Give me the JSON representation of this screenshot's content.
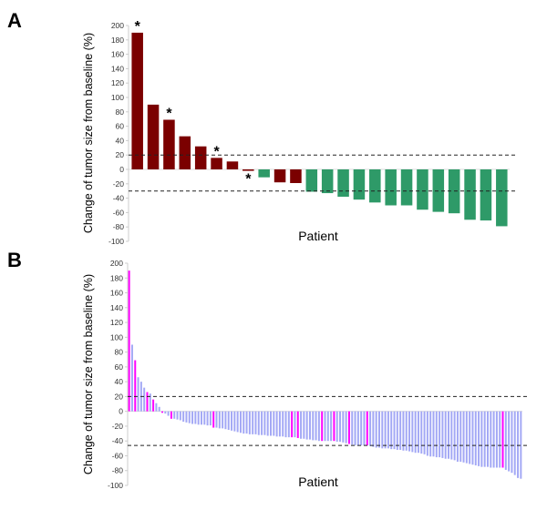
{
  "chart_data": [
    {
      "panel_label": "A",
      "type": "bar",
      "ylabel": "Change of tumor size from baseline (%)",
      "xlabel": "Patient",
      "ylim": [
        -100,
        200
      ],
      "yticks": [
        200,
        180,
        160,
        140,
        120,
        100,
        80,
        60,
        40,
        20,
        0,
        -20,
        -40,
        -60,
        -80,
        -100
      ],
      "reference_lines": [
        20,
        -30
      ],
      "values": [
        190,
        90,
        69,
        46,
        32,
        16,
        11,
        -2,
        -11,
        -18,
        -19,
        -31,
        -33,
        -38,
        -42,
        -46,
        -50,
        -50,
        -56,
        -59,
        -61,
        -70,
        -71,
        -79
      ],
      "bar_colors": [
        "red",
        "red",
        "red",
        "red",
        "red",
        "red",
        "red",
        "red",
        "green",
        "red",
        "red",
        "green",
        "green",
        "green",
        "green",
        "green",
        "green",
        "green",
        "green",
        "green",
        "green",
        "green",
        "green",
        "green"
      ],
      "asterisk_bars": [
        0,
        2,
        5,
        7
      ],
      "asterisk_label": "*",
      "colors": {
        "red": "#7b0000",
        "green": "#2e9a68"
      },
      "grid": false
    },
    {
      "panel_label": "B",
      "type": "bar",
      "ylabel": "Change of tumor size from baseline (%)",
      "xlabel": "Patient",
      "ylim": [
        -100,
        200
      ],
      "yticks": [
        200,
        180,
        160,
        140,
        120,
        100,
        80,
        60,
        40,
        20,
        0,
        -20,
        -40,
        -60,
        -80,
        -100
      ],
      "reference_lines": [
        20,
        -46
      ],
      "values": [
        190,
        90,
        69,
        46,
        40,
        32,
        26,
        24,
        16,
        11,
        6,
        -2,
        -3,
        -6,
        -10,
        -10,
        -11,
        -12,
        -14,
        -15,
        -16,
        -17,
        -17,
        -18,
        -18,
        -18,
        -19,
        -19,
        -22,
        -22,
        -23,
        -23,
        -24,
        -25,
        -26,
        -27,
        -28,
        -29,
        -30,
        -30,
        -31,
        -31,
        -31,
        -32,
        -32,
        -32,
        -33,
        -33,
        -33,
        -34,
        -34,
        -34,
        -35,
        -35,
        -35,
        -35,
        -36,
        -37,
        -37,
        -38,
        -38,
        -39,
        -39,
        -40,
        -40,
        -40,
        -40,
        -40,
        -40,
        -41,
        -41,
        -42,
        -43,
        -44,
        -45,
        -46,
        -46,
        -46,
        -46,
        -46,
        -47,
        -48,
        -49,
        -49,
        -50,
        -50,
        -50,
        -51,
        -51,
        -52,
        -52,
        -53,
        -53,
        -54,
        -55,
        -56,
        -56,
        -57,
        -58,
        -60,
        -61,
        -61,
        -62,
        -62,
        -63,
        -64,
        -64,
        -65,
        -66,
        -68,
        -68,
        -69,
        -70,
        -71,
        -72,
        -73,
        -74,
        -75,
        -75,
        -75,
        -76,
        -76,
        -76,
        -76,
        -76,
        -79,
        -81,
        -83,
        -86,
        -90,
        -91
      ],
      "highlighted_bars": [
        0,
        2,
        6,
        8,
        11,
        14,
        28,
        54,
        56,
        64,
        68,
        73,
        79,
        124
      ],
      "colors": {
        "default": "#a3a8f5",
        "highlight": "#ff00ff"
      },
      "grid": false
    }
  ]
}
